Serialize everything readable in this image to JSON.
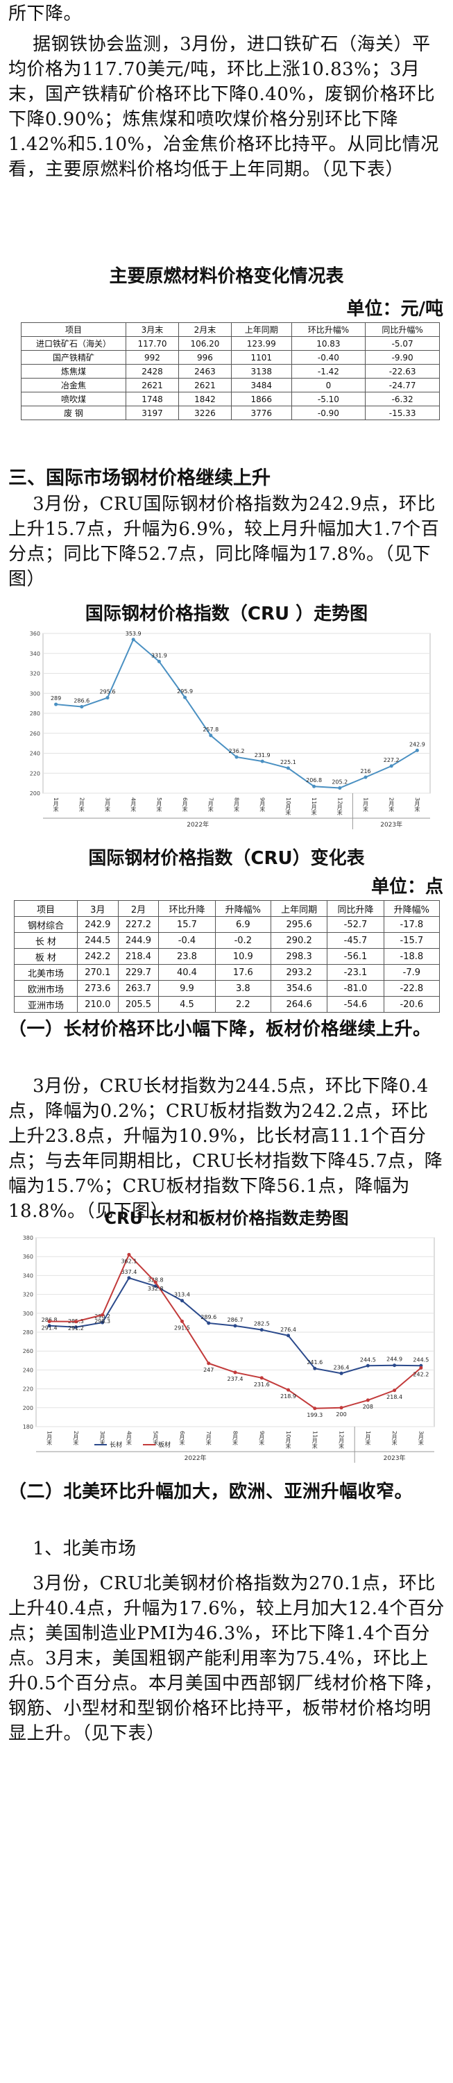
{
  "paras": [
    "所下降。",
    "    据钢铁协会监测，3月份，进口铁矿石（海关）平均价格为117.70美元/吨，环比上涨10.83%；3月末，国产铁精矿价格环比下降0.40%，废钢价格环比下降0.90%；炼焦煤和喷吹煤价格分别环比下降1.42%和5.10%，冶金焦价格环比持平。从同比情况看，主要原燃料价格均低于上年同期。（见下表）"
  ],
  "table1": {
    "title": "主要原燃材料价格变化情况表",
    "unit": "单位：元/吨",
    "headers": [
      "项目",
      "3月末",
      "2月末",
      "上年同期",
      "环比升幅%",
      "同比升幅%"
    ],
    "rows": [
      [
        "进口铁矿石（海关）",
        "117.70",
        "106.20",
        "123.99",
        "10.83",
        "-5.07"
      ],
      [
        "国产铁精矿",
        "992",
        "996",
        "1101",
        "-0.40",
        "-9.90"
      ],
      [
        "炼焦煤",
        "2428",
        "2463",
        "3138",
        "-1.42",
        "-22.63"
      ],
      [
        "冶金焦",
        "2621",
        "2621",
        "3484",
        "0",
        "-24.77"
      ],
      [
        "喷吹煤",
        "1748",
        "1842",
        "1866",
        "-5.10",
        "-6.32"
      ],
      [
        "废 钢",
        "3197",
        "3226",
        "3776",
        "-0.90",
        "-15.33"
      ]
    ]
  },
  "section3": {
    "heading": "三、国际市场钢材价格继续上升",
    "para": "    3月份，CRU国际钢材价格指数为242.9点，环比上升15.7点，升幅为6.9%，较上月升幅加大1.7个百分点；同比下降52.7点，同比降幅为17.8%。（见下图）"
  },
  "chart1": {
    "title": "国际钢材价格指数（CRU ）走势图",
    "chart_data": {
      "type": "line",
      "x": [
        "1月末",
        "2月末",
        "3月末",
        "4月末",
        "5月末",
        "6月末",
        "7月末",
        "8月末",
        "9月末",
        "10月末",
        "11月末",
        "12月末",
        "1月末",
        "2月末",
        "3月末"
      ],
      "values": [
        289,
        286.6,
        295.6,
        353.9,
        331.9,
        295.9,
        257.8,
        236.2,
        231.9,
        225.1,
        206.8,
        205.2,
        216,
        227.2,
        242.9
      ],
      "ylim": [
        200,
        360
      ],
      "yticks": [
        200,
        220,
        240,
        260,
        280,
        300,
        320,
        340,
        360
      ],
      "year_labels": [
        "2022年",
        "2023年"
      ],
      "color": "#4a90c2"
    }
  },
  "table2": {
    "title": "国际钢材价格指数（CRU）变化表",
    "unit": "单位：点",
    "headers": [
      "项目",
      "3月",
      "2月",
      "环比升降",
      "升降幅%",
      "上年同期",
      "同比升降",
      "升降幅%"
    ],
    "rows": [
      [
        "钢材综合",
        "242.9",
        "227.2",
        "15.7",
        "6.9",
        "295.6",
        "-52.7",
        "-17.8"
      ],
      [
        "长 材",
        "244.5",
        "244.9",
        "-0.4",
        "-0.2",
        "290.2",
        "-45.7",
        "-15.7"
      ],
      [
        "板 材",
        "242.2",
        "218.4",
        "23.8",
        "10.9",
        "298.3",
        "-56.1",
        "-18.8"
      ],
      [
        "北美市场",
        "270.1",
        "229.7",
        "40.4",
        "17.6",
        "293.2",
        "-23.1",
        "-7.9"
      ],
      [
        "欧洲市场",
        "273.6",
        "263.7",
        "9.9",
        "3.8",
        "354.6",
        "-81.0",
        "-22.8"
      ],
      [
        "亚洲市场",
        "210.0",
        "205.5",
        "4.5",
        "2.2",
        "264.6",
        "-54.6",
        "-20.6"
      ]
    ]
  },
  "sub1": {
    "heading": "（一）长材价格环比小幅下降，板材价格继续上升。",
    "para": "    3月份，CRU长材指数为244.5点，环比下降0.4点，降幅为0.2%；CRU板材指数为242.2点，环比上升23.8点，升幅为10.9%，比长材高11.1个百分点；与去年同期相比，CRU长材指数下降45.7点，降幅为15.7%；CRU板材指数下降56.1点，降幅为18.8%。（见下图）"
  },
  "chart2": {
    "title": "CRU 长材和板材价格指数走势图",
    "chart_data": {
      "type": "line",
      "x": [
        "1月末",
        "2月末",
        "3月末",
        "4月末",
        "5月末",
        "6月末",
        "7月末",
        "8月末",
        "9月末",
        "10月末",
        "11月末",
        "12月末",
        "1月末",
        "2月末",
        "3月末"
      ],
      "series": [
        {
          "name": "长材",
          "values": [
            286.8,
            285.3,
            290.2,
            337.4,
            328.8,
            313.4,
            289.6,
            286.7,
            282.5,
            276.4,
            241.6,
            236.4,
            244.5,
            244.9,
            244.5
          ],
          "color": "#2b4a8c"
        },
        {
          "name": "板材",
          "values": [
            291.4,
            291.2,
            298.3,
            362.1,
            332.8,
            291.5,
            247,
            237.4,
            231.6,
            218.9,
            199.3,
            200,
            208,
            218.4,
            242.2
          ],
          "color": "#c23a3a"
        }
      ],
      "ylim": [
        180,
        380
      ],
      "yticks": [
        180,
        200,
        220,
        240,
        260,
        280,
        300,
        320,
        340,
        360,
        380
      ],
      "year_labels": [
        "2022年",
        "2023年"
      ]
    }
  },
  "sub2": {
    "heading": "（二）北美环比升幅加大，欧洲、亚洲升幅收窄。",
    "item": "    1、北美市场",
    "para": "    3月份，CRU北美钢材价格指数为270.1点，环比上升40.4点，升幅为17.6%，较上月加大12.4个百分点；美国制造业PMI为46.3%，环比下降1.4个百分点。3月末，美国粗钢产能利用率为75.4%，环比上升0.5个百分点。本月美国中西部钢厂线材价格下降，钢筋、小型材和型钢价格环比持平，板带材价格均明显上升。（见下表）"
  }
}
